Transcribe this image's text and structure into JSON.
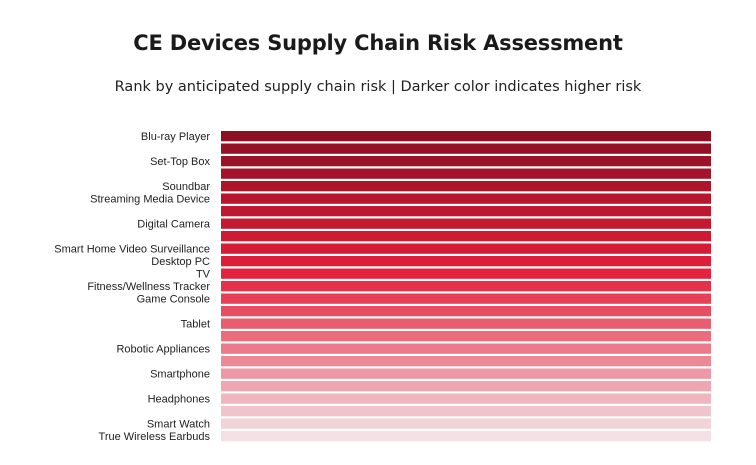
{
  "chart_data": {
    "type": "bar",
    "orientation": "horizontal",
    "title": "CE Devices Supply Chain Risk Assessment",
    "subtitle": "Rank by anticipated supply chain risk | Darker color indicates higher risk",
    "legend": "none",
    "grid": false,
    "xlabel": "",
    "ylabel": "",
    "colors": {
      "high_risk": "#8c0f22",
      "mid_risk": "#e41f3a",
      "low_risk": "#f2e2e5"
    },
    "bars": [
      {
        "label": "Blu-ray Player",
        "rank": 1
      },
      {
        "label": "",
        "rank": 2
      },
      {
        "label": "Set-Top Box",
        "rank": 3
      },
      {
        "label": "",
        "rank": 4
      },
      {
        "label": "Soundbar",
        "rank": 5
      },
      {
        "label": "Streaming Media Device",
        "rank": 6
      },
      {
        "label": "",
        "rank": 7
      },
      {
        "label": "Digital Camera",
        "rank": 8
      },
      {
        "label": "",
        "rank": 9
      },
      {
        "label": "Smart Home Video Surveillance",
        "rank": 10
      },
      {
        "label": "Desktop PC",
        "rank": 11
      },
      {
        "label": "TV",
        "rank": 12
      },
      {
        "label": "Fitness/Wellness Tracker",
        "rank": 13
      },
      {
        "label": "Game Console",
        "rank": 14
      },
      {
        "label": "",
        "rank": 15
      },
      {
        "label": "Tablet",
        "rank": 16
      },
      {
        "label": "",
        "rank": 17
      },
      {
        "label": "Robotic Appliances",
        "rank": 18
      },
      {
        "label": "",
        "rank": 19
      },
      {
        "label": "Smartphone",
        "rank": 20
      },
      {
        "label": "",
        "rank": 21
      },
      {
        "label": "Headphones",
        "rank": 22
      },
      {
        "label": "",
        "rank": 23
      },
      {
        "label": "Smart Watch",
        "rank": 24
      },
      {
        "label": "True Wireless Earbuds",
        "rank": 25
      }
    ]
  }
}
